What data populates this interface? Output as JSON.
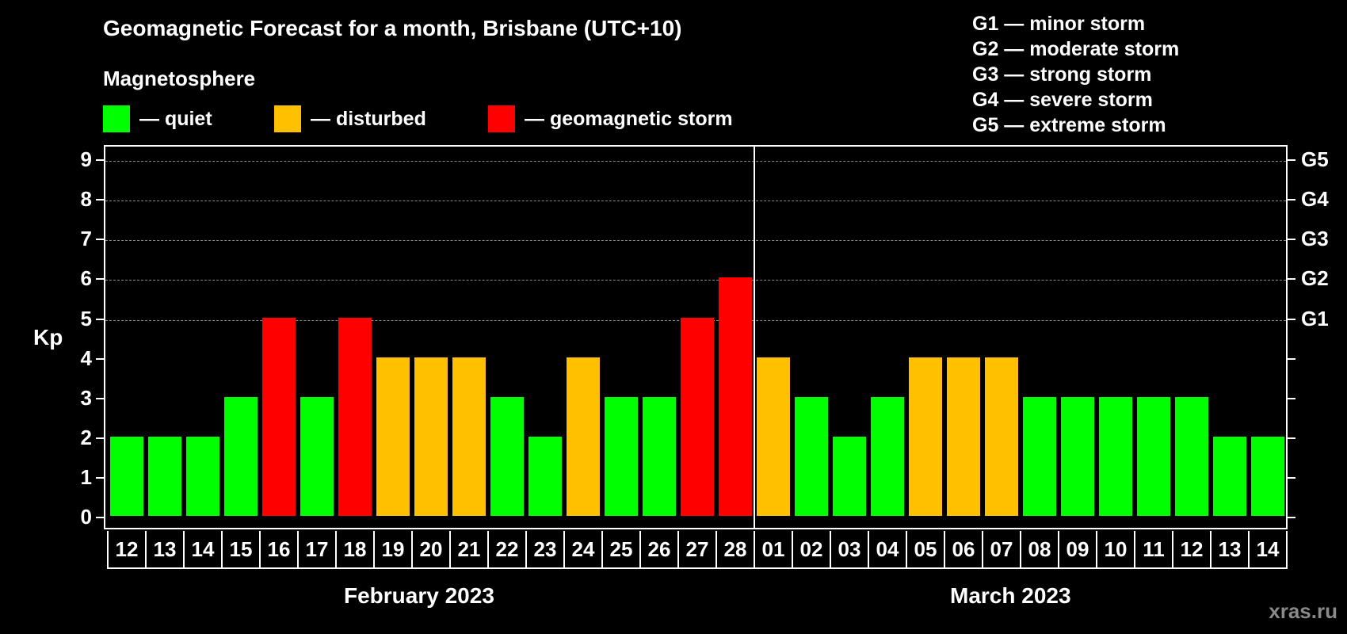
{
  "header": {
    "title": "Geomagnetic Forecast for a month, Brisbane (UTC+10)",
    "subtitle": "Magnetosphere"
  },
  "legend": [
    {
      "label": "— quiet",
      "color": "#00ff00"
    },
    {
      "label": "— disturbed",
      "color": "#ffc000"
    },
    {
      "label": "— geomagnetic storm",
      "color": "#ff0000"
    }
  ],
  "storm_scale": [
    "G1 — minor storm",
    "G2 — moderate storm",
    "G3 — strong storm",
    "G4 — severe storm",
    "G5 — extreme storm"
  ],
  "axis": {
    "ylabel": "Kp",
    "yticks": [
      "0",
      "1",
      "2",
      "3",
      "4",
      "5",
      "6",
      "7",
      "8",
      "9"
    ],
    "right_labels": [
      {
        "kp": 5,
        "label": "G1"
      },
      {
        "kp": 6,
        "label": "G2"
      },
      {
        "kp": 7,
        "label": "G3"
      },
      {
        "kp": 8,
        "label": "G4"
      },
      {
        "kp": 9,
        "label": "G5"
      }
    ]
  },
  "months": {
    "first": "February 2023",
    "second": "March 2023"
  },
  "watermark": "xras.ru",
  "colors": {
    "quiet": "#00ff00",
    "disturbed": "#ffc000",
    "storm": "#ff0000"
  },
  "chart_data": {
    "type": "bar",
    "title": "Geomagnetic Forecast for a month, Brisbane (UTC+10)",
    "xlabel": "February 2023 / March 2023",
    "ylabel": "Kp",
    "ylim": [
      0,
      9
    ],
    "grid": true,
    "categories": [
      "12",
      "13",
      "14",
      "15",
      "16",
      "17",
      "18",
      "19",
      "20",
      "21",
      "22",
      "23",
      "24",
      "25",
      "26",
      "27",
      "28",
      "01",
      "02",
      "03",
      "04",
      "05",
      "06",
      "07",
      "08",
      "09",
      "10",
      "11",
      "12",
      "13",
      "14"
    ],
    "values": [
      2,
      2,
      2,
      3,
      5,
      3,
      5,
      4,
      4,
      4,
      3,
      2,
      4,
      3,
      3,
      5,
      6,
      4,
      3,
      2,
      3,
      4,
      4,
      4,
      3,
      3,
      3,
      3,
      3,
      2,
      2
    ],
    "status": [
      "quiet",
      "quiet",
      "quiet",
      "quiet",
      "storm",
      "quiet",
      "storm",
      "disturbed",
      "disturbed",
      "disturbed",
      "quiet",
      "quiet",
      "disturbed",
      "quiet",
      "quiet",
      "storm",
      "storm",
      "disturbed",
      "quiet",
      "quiet",
      "quiet",
      "disturbed",
      "disturbed",
      "disturbed",
      "quiet",
      "quiet",
      "quiet",
      "quiet",
      "quiet",
      "quiet",
      "quiet"
    ],
    "legend": [
      "quiet",
      "disturbed",
      "geomagnetic storm"
    ]
  }
}
